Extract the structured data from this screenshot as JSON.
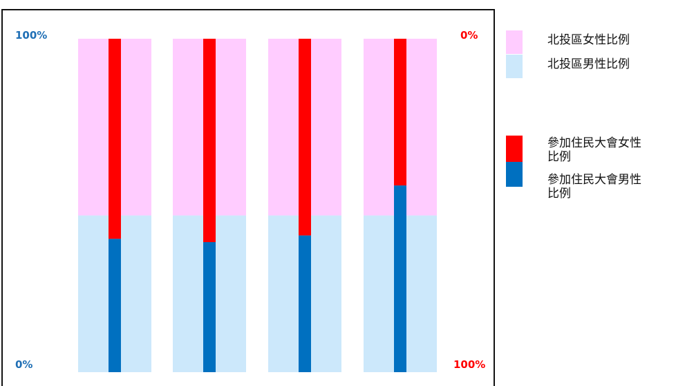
{
  "chart_data": {
    "type": "bar",
    "stacked": true,
    "categories": [
      "",
      "",
      "",
      ""
    ],
    "background_series": [
      {
        "name": "北投區女性比例",
        "values": [
          53,
          53,
          53,
          53
        ],
        "color": "#FFCCFF"
      },
      {
        "name": "北投區男性比例",
        "values": [
          47,
          47,
          47,
          47
        ],
        "color": "#CCE8FB"
      }
    ],
    "series": [
      {
        "name": "參加住民大會女性比例",
        "values": [
          60,
          61,
          59,
          44
        ],
        "color": "#FF0000"
      },
      {
        "name": "參加住民大會男性比例",
        "values": [
          40,
          39,
          41,
          56
        ],
        "color": "#0070C0"
      }
    ],
    "left_axis": {
      "top": "100%",
      "bottom": "0%",
      "color": "#1F6FB5"
    },
    "right_axis": {
      "top": "0%",
      "bottom": "100%",
      "color": "#FF0000"
    },
    "ylim": [
      0,
      100
    ]
  }
}
